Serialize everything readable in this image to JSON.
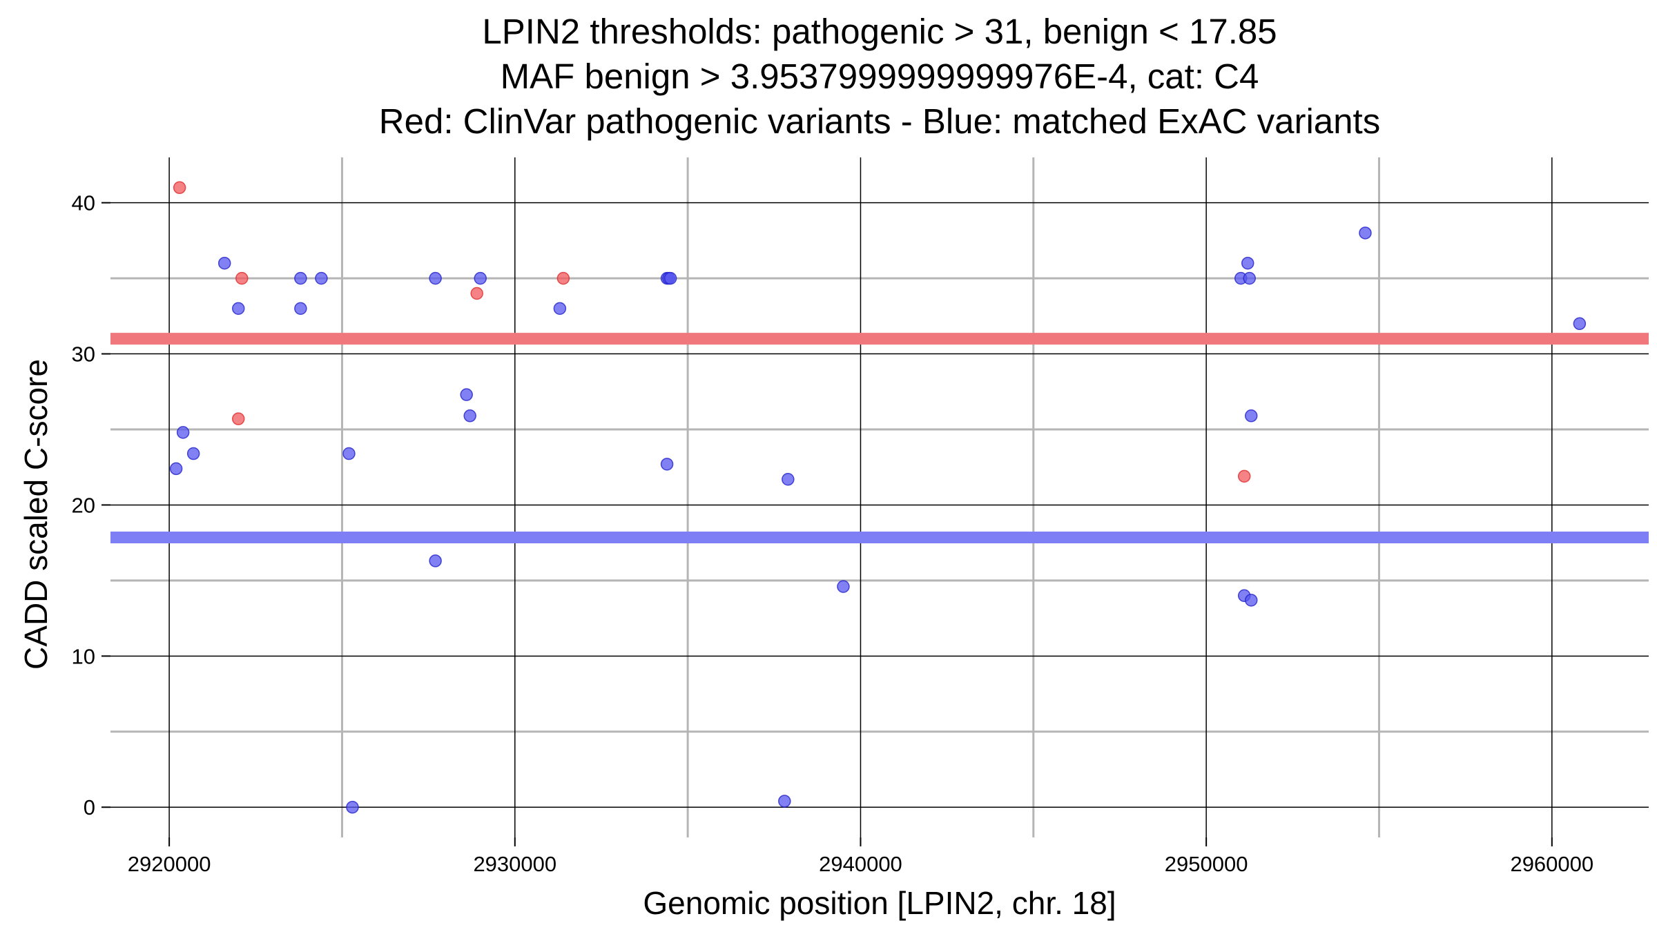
{
  "chart_data": {
    "type": "scatter",
    "title_lines": [
      "LPIN2 thresholds: pathogenic > 31, benign < 17.85",
      "MAF benign > 3.9537999999999976E-4, cat: C4",
      "Red: ClinVar pathogenic variants - Blue: matched ExAC variants"
    ],
    "xlabel": "Genomic position [LPIN2, chr. 18]",
    "ylabel": "CADD scaled C-score",
    "xlim": [
      2918300,
      2962800
    ],
    "ylim": [
      -2,
      43
    ],
    "x_ticks": [
      2920000,
      2930000,
      2940000,
      2950000,
      2960000
    ],
    "x_tick_labels": [
      "2920000",
      "2930000",
      "2940000",
      "2950000",
      "2960000"
    ],
    "x_minor": [
      2925000,
      2935000,
      2945000,
      2955000
    ],
    "y_ticks": [
      0,
      10,
      20,
      30,
      40
    ],
    "y_tick_labels": [
      "0",
      "10",
      "20",
      "30",
      "40"
    ],
    "y_minor": [
      5,
      15,
      25,
      35
    ],
    "thresholds": [
      {
        "name": "pathogenic",
        "value": 31,
        "color": "#f0787c"
      },
      {
        "name": "benign",
        "value": 17.85,
        "color": "#7f7ff5"
      }
    ],
    "colors": {
      "pathogenic": "#f25a5e",
      "exac": "#5757ef",
      "pathogenic_stroke": "#e02a2a",
      "exac_stroke": "#2222cc",
      "grid_major": "#000000",
      "grid_minor": "#b5b5b5"
    },
    "series": [
      {
        "name": "ClinVar pathogenic variants",
        "color_key": "pathogenic",
        "points": [
          {
            "x": 2920300,
            "y": 41
          },
          {
            "x": 2922100,
            "y": 35
          },
          {
            "x": 2922000,
            "y": 25.7
          },
          {
            "x": 2928900,
            "y": 34
          },
          {
            "x": 2931400,
            "y": 35
          },
          {
            "x": 2951100,
            "y": 21.9
          }
        ]
      },
      {
        "name": "matched ExAC variants",
        "color_key": "exac",
        "points": [
          {
            "x": 2921600,
            "y": 36
          },
          {
            "x": 2922000,
            "y": 33
          },
          {
            "x": 2923800,
            "y": 35
          },
          {
            "x": 2923800,
            "y": 33
          },
          {
            "x": 2924400,
            "y": 35
          },
          {
            "x": 2927700,
            "y": 35
          },
          {
            "x": 2929000,
            "y": 35
          },
          {
            "x": 2931300,
            "y": 33
          },
          {
            "x": 2934400,
            "y": 35
          },
          {
            "x": 2934450,
            "y": 35
          },
          {
            "x": 2934500,
            "y": 35
          },
          {
            "x": 2951000,
            "y": 35
          },
          {
            "x": 2951200,
            "y": 36
          },
          {
            "x": 2951250,
            "y": 35
          },
          {
            "x": 2954600,
            "y": 38
          },
          {
            "x": 2960800,
            "y": 32
          },
          {
            "x": 2920200,
            "y": 22.4
          },
          {
            "x": 2920400,
            "y": 24.8
          },
          {
            "x": 2920700,
            "y": 23.4
          },
          {
            "x": 2925200,
            "y": 23.4
          },
          {
            "x": 2928600,
            "y": 27.3
          },
          {
            "x": 2928700,
            "y": 25.9
          },
          {
            "x": 2934400,
            "y": 22.7
          },
          {
            "x": 2937900,
            "y": 21.7
          },
          {
            "x": 2951300,
            "y": 25.9
          },
          {
            "x": 2927700,
            "y": 16.3
          },
          {
            "x": 2939500,
            "y": 14.6
          },
          {
            "x": 2951100,
            "y": 14
          },
          {
            "x": 2951300,
            "y": 13.7
          },
          {
            "x": 2925300,
            "y": 0
          },
          {
            "x": 2937800,
            "y": 0.4
          }
        ]
      }
    ]
  }
}
